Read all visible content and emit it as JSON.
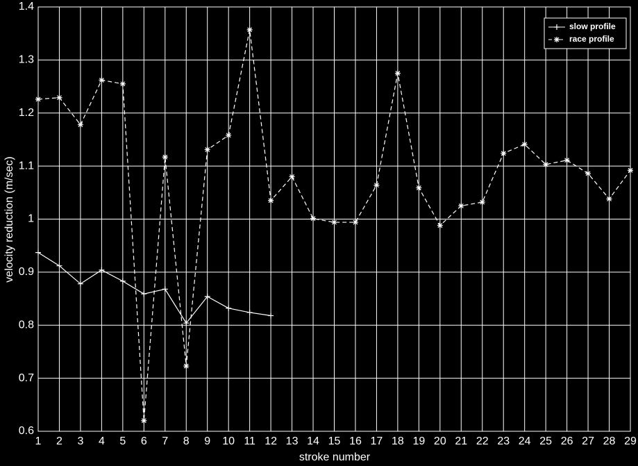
{
  "chart_data": {
    "type": "line",
    "x_label": "stroke number",
    "y_label": "velocity reduction (m/sec)",
    "x": [
      1,
      2,
      3,
      4,
      5,
      6,
      7,
      8,
      9,
      10,
      11,
      12,
      13,
      14,
      15,
      16,
      17,
      18,
      19,
      20,
      21,
      22,
      23,
      24,
      25,
      26,
      27,
      28,
      29
    ],
    "series": [
      {
        "name": "slow profile",
        "color": "#ffffff",
        "dash": "solid",
        "marker": "plus",
        "values": [
          0.937,
          0.912,
          0.878,
          0.904,
          0.883,
          0.859,
          0.868,
          0.804,
          0.854,
          0.832,
          0.824,
          0.818,
          null,
          null,
          null,
          null,
          null,
          null,
          null,
          null,
          null,
          null,
          null,
          null,
          null,
          null,
          null,
          null,
          null
        ]
      },
      {
        "name": "race profile",
        "color": "#ffffff",
        "dash": "dashed",
        "marker": "star",
        "values": [
          1.226,
          1.229,
          1.178,
          1.262,
          1.255,
          0.62,
          1.117,
          0.723,
          1.131,
          1.158,
          1.357,
          1.035,
          1.08,
          1.001,
          0.994,
          0.994,
          1.064,
          1.275,
          1.059,
          0.988,
          1.025,
          1.032,
          1.124,
          1.141,
          1.103,
          1.111,
          1.086,
          1.038,
          1.092
        ]
      }
    ],
    "xlim": [
      1,
      29
    ],
    "ylim": [
      0.6,
      1.4
    ],
    "xticks": [
      1,
      2,
      3,
      4,
      5,
      6,
      7,
      8,
      9,
      10,
      11,
      12,
      13,
      14,
      15,
      16,
      17,
      18,
      19,
      20,
      21,
      22,
      23,
      24,
      25,
      26,
      27,
      28,
      29
    ],
    "yticks": [
      0.6,
      0.7,
      0.8,
      0.9,
      1,
      1.1,
      1.2,
      1.3,
      1.4
    ],
    "grid": true,
    "legend": "top-right"
  }
}
